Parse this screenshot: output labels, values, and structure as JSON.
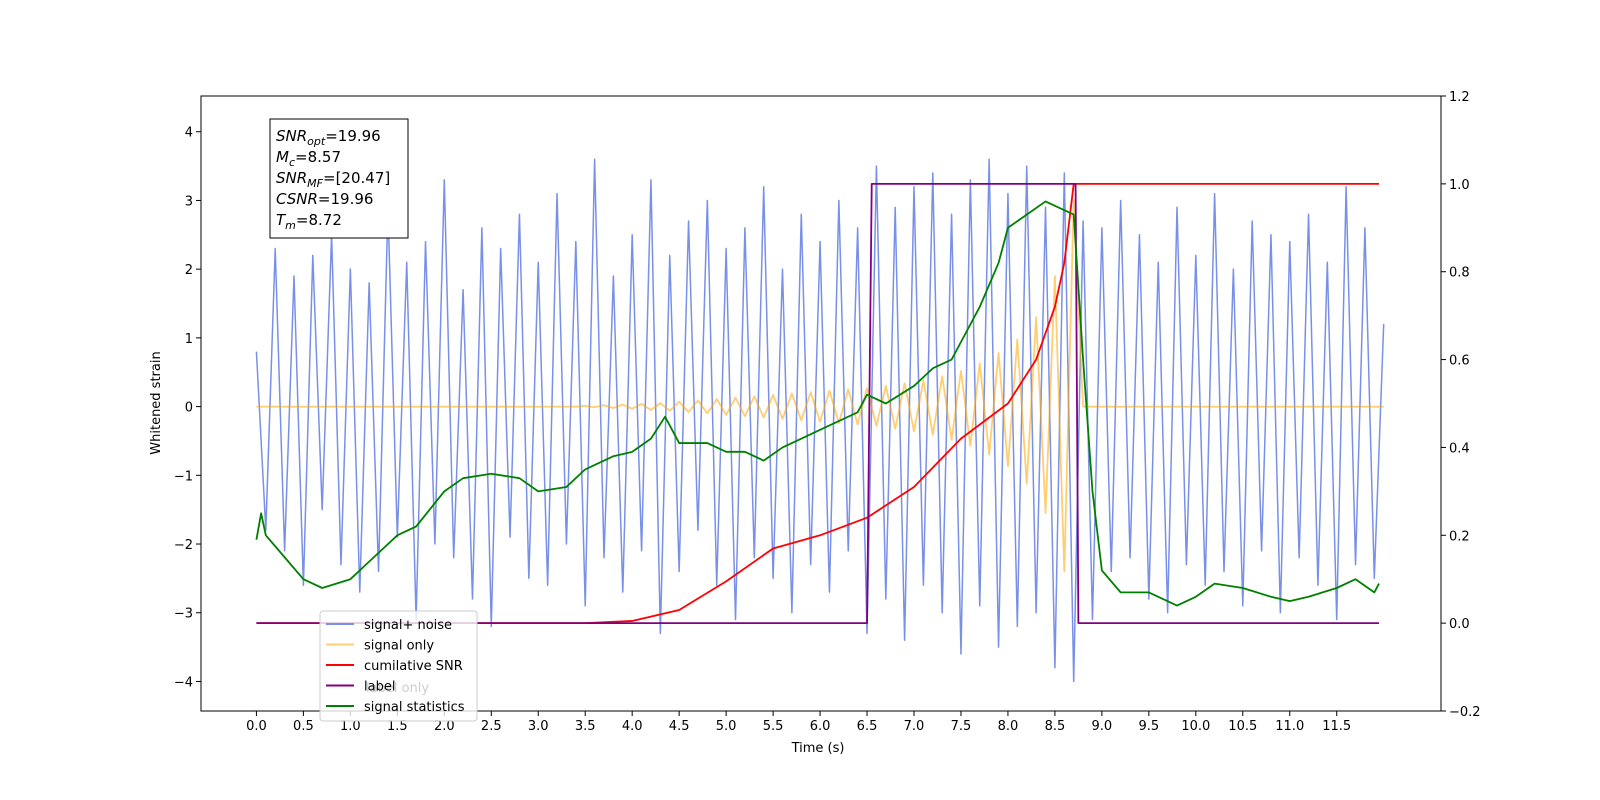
{
  "chart_data": {
    "type": "line",
    "xlabel": "Time (s)",
    "ylabel": "Whitened strain",
    "xlim": [
      -0.59,
      12.61
    ],
    "ylim": [
      -4.43,
      4.52
    ],
    "y2lim": [
      -0.2,
      1.2
    ],
    "xticks": [
      {
        "value": 0,
        "label": "0.0"
      },
      0.5,
      {
        "value": 1,
        "label": "1.0"
      },
      1.5,
      {
        "value": 2,
        "label": "2.0"
      },
      2.5,
      {
        "value": 3,
        "label": "3.0"
      },
      3.5,
      {
        "value": 4,
        "label": "4.0"
      },
      4.5,
      {
        "value": 5,
        "label": "5.0"
      },
      5.5,
      {
        "value": 6,
        "label": "6.0"
      },
      6.5,
      {
        "value": 7,
        "label": "7.0"
      },
      7.5,
      {
        "value": 8,
        "label": "8.0"
      },
      8.5,
      {
        "value": 9,
        "label": "9.0"
      },
      9.5,
      {
        "value": 10,
        "label": "10.0"
      },
      10.5,
      {
        "value": 11,
        "label": "11.0"
      },
      11.5
    ],
    "yticks": [
      {
        "value": -4,
        "label": "−4"
      },
      {
        "value": -3,
        "label": "−3"
      },
      {
        "value": -2,
        "label": "−2"
      },
      {
        "value": -1,
        "label": "−1"
      },
      0,
      1,
      2,
      3,
      4
    ],
    "y2ticks": [
      {
        "value": -0.2,
        "label": "−0.2"
      },
      {
        "value": 0,
        "label": "0.0"
      },
      0.2,
      0.4,
      0.6,
      0.8,
      {
        "value": 1,
        "label": "1.0"
      },
      1.2
    ],
    "annotation_box": [
      {
        "symbol": "SNR",
        "sub": "opt",
        "rest": "=19.96"
      },
      {
        "symbol": "M",
        "sub": "c",
        "rest": "=8.57"
      },
      {
        "symbol": "SNR",
        "sub": "MF",
        "rest": "=[20.47]"
      },
      {
        "symbol": "CSNR",
        "rest": "=19.96"
      },
      {
        "symbol": "T",
        "sub": "m",
        "rest": "=8.72"
      }
    ],
    "hidden_legend_text": "label only",
    "series": [
      {
        "name": "signal+ noise",
        "color": "#7890e8",
        "axis": "y",
        "x": [
          0,
          0.1,
          0.2,
          0.3,
          0.4,
          0.5,
          0.6,
          0.7,
          0.8,
          0.9,
          1,
          1.1,
          1.2,
          1.3,
          1.4,
          1.5,
          1.6,
          1.7,
          1.8,
          1.9,
          2,
          2.1,
          2.2,
          2.3,
          2.4,
          2.5,
          2.6,
          2.7,
          2.8,
          2.9,
          3,
          3.1,
          3.2,
          3.3,
          3.4,
          3.5,
          3.6,
          3.7,
          3.8,
          3.9,
          4,
          4.1,
          4.2,
          4.3,
          4.4,
          4.5,
          4.6,
          4.7,
          4.8,
          4.9,
          5,
          5.1,
          5.2,
          5.3,
          5.4,
          5.5,
          5.6,
          5.7,
          5.8,
          5.9,
          6,
          6.1,
          6.2,
          6.3,
          6.4,
          6.5,
          6.6,
          6.7,
          6.8,
          6.9,
          7,
          7.1,
          7.2,
          7.3,
          7.4,
          7.5,
          7.6,
          7.7,
          7.8,
          7.9,
          8,
          8.1,
          8.2,
          8.3,
          8.4,
          8.5,
          8.6,
          8.7,
          8.8,
          8.9,
          9,
          9.1,
          9.2,
          9.3,
          9.4,
          9.5,
          9.6,
          9.7,
          9.8,
          9.9,
          10,
          10.1,
          10.2,
          10.3,
          10.4,
          10.5,
          10.6,
          10.7,
          10.8,
          10.9,
          11,
          11.1,
          11.2,
          11.3,
          11.4,
          11.5,
          11.6,
          11.7,
          11.8,
          11.9,
          12
        ],
        "values": [
          0.8,
          -1.8,
          2.3,
          -2.1,
          1.9,
          -2.6,
          2.2,
          -1.5,
          2.5,
          -2.3,
          2.0,
          -2.7,
          1.8,
          -2.4,
          2.9,
          -1.9,
          2.1,
          -3.1,
          2.4,
          -2.0,
          3.3,
          -2.2,
          1.7,
          -2.8,
          2.6,
          -3.2,
          2.3,
          -1.9,
          2.8,
          -2.5,
          2.1,
          -2.6,
          3.1,
          -2.0,
          2.4,
          -2.9,
          3.6,
          -2.2,
          1.9,
          -2.7,
          2.5,
          -2.1,
          3.3,
          -3.3,
          2.2,
          -2.4,
          2.7,
          -1.8,
          3.0,
          -2.6,
          2.3,
          -3.1,
          2.6,
          -2.2,
          3.2,
          -2.5,
          2.0,
          -3.0,
          2.8,
          -2.3,
          2.4,
          -2.7,
          3.0,
          -2.1,
          2.6,
          -3.3,
          3.5,
          -2.8,
          2.9,
          -3.4,
          3.2,
          -2.6,
          3.4,
          -3.0,
          2.8,
          -3.6,
          3.3,
          -2.9,
          3.6,
          -3.5,
          3.1,
          -3.2,
          3.5,
          -3.0,
          2.9,
          -3.8,
          3.4,
          -4.0,
          2.7,
          -3.1,
          2.6,
          -2.4,
          3.0,
          -2.2,
          2.5,
          -2.8,
          2.1,
          -3.0,
          2.9,
          -2.3,
          2.2,
          -2.6,
          3.1,
          -2.4,
          2.0,
          -2.9,
          2.7,
          -2.1,
          2.5,
          -3.0,
          2.4,
          -2.2,
          2.8,
          -2.6,
          2.1,
          -3.1,
          3.2,
          -2.3,
          2.6,
          -2.5,
          1.2
        ]
      },
      {
        "name": "signal only",
        "color": "#ffa500",
        "axis": "y",
        "x": [
          0,
          0.1,
          0.2,
          0.3,
          0.4,
          0.5,
          0.6,
          0.7,
          0.8,
          0.9,
          1,
          1.1,
          1.2,
          1.3,
          1.4,
          1.5,
          1.6,
          1.7,
          1.8,
          1.9,
          2,
          2.1,
          2.2,
          2.3,
          2.4,
          2.5,
          2.6,
          2.7,
          2.8,
          2.9,
          3,
          3.1,
          3.2,
          3.3,
          3.4,
          3.5,
          3.6,
          3.7,
          3.8,
          3.9,
          4,
          4.1,
          4.2,
          4.3,
          4.4,
          4.5,
          4.6,
          4.7,
          4.8,
          4.9,
          5,
          5.1,
          5.2,
          5.3,
          5.4,
          5.5,
          5.6,
          5.7,
          5.8,
          5.9,
          6,
          6.1,
          6.2,
          6.3,
          6.4,
          6.5,
          6.6,
          6.7,
          6.8,
          6.9,
          7,
          7.1,
          7.2,
          7.3,
          7.4,
          7.5,
          7.6,
          7.7,
          7.8,
          7.9,
          8,
          8.1,
          8.2,
          8.3,
          8.4,
          8.5,
          8.6,
          8.7,
          8.8,
          8.9,
          9,
          9.1,
          9.2,
          9.3,
          9.4,
          9.5,
          9.6,
          9.7,
          9.8,
          9.9,
          10,
          10.1,
          10.2,
          10.3,
          10.4,
          10.5,
          10.6,
          10.7,
          10.8,
          10.9,
          11,
          11.1,
          11.2,
          11.3,
          11.4,
          11.5,
          11.6,
          11.7,
          11.8,
          11.9,
          12
        ],
        "values": [
          0,
          0,
          0,
          0,
          0,
          0,
          0,
          0,
          0,
          0,
          0,
          0,
          0,
          0,
          0,
          0,
          0,
          0,
          0,
          0,
          0,
          0,
          0,
          0,
          0,
          0,
          0,
          0,
          0,
          0,
          0,
          0,
          0,
          0,
          0,
          0.01,
          -0.01,
          0.02,
          -0.02,
          0.03,
          -0.03,
          0.04,
          -0.05,
          0.05,
          -0.06,
          0.07,
          -0.08,
          0.09,
          -0.1,
          0.11,
          -0.12,
          0.13,
          -0.14,
          0.15,
          -0.16,
          0.17,
          -0.18,
          0.19,
          -0.2,
          0.21,
          -0.22,
          0.23,
          -0.24,
          0.25,
          -0.26,
          0.27,
          -0.28,
          0.3,
          -0.32,
          0.34,
          -0.36,
          0.38,
          -0.41,
          0.44,
          -0.48,
          0.52,
          -0.57,
          0.63,
          -0.7,
          0.78,
          -0.87,
          0.98,
          -1.12,
          1.3,
          -1.55,
          1.9,
          -2.4,
          3.0,
          0,
          0,
          0,
          0,
          0,
          0,
          0,
          0,
          0,
          0,
          0,
          0,
          0,
          0,
          0,
          0,
          0,
          0,
          0,
          0,
          0,
          0,
          0,
          0,
          0,
          0,
          0,
          0,
          0,
          0,
          0,
          0,
          0
        ]
      },
      {
        "name": "cumilative SNR",
        "color": "#ff0000",
        "axis": "y2",
        "x": [
          0,
          3.5,
          4,
          4.5,
          5,
          5.5,
          6,
          6.5,
          7,
          7.5,
          8,
          8.3,
          8.5,
          8.6,
          8.7,
          11.95
        ],
        "values": [
          0,
          0,
          0.005,
          0.03,
          0.095,
          0.17,
          0.2,
          0.24,
          0.31,
          0.42,
          0.5,
          0.6,
          0.72,
          0.82,
          1,
          1
        ]
      },
      {
        "name": "label",
        "color": "#800080",
        "axis": "y2",
        "x": [
          0,
          6.5,
          6.55,
          8.72,
          8.75,
          11.95
        ],
        "values": [
          0,
          0,
          1,
          1,
          0,
          0
        ]
      },
      {
        "name": "signal statistics",
        "color": "#008000",
        "axis": "y2",
        "x": [
          0,
          0.05,
          0.1,
          0.3,
          0.5,
          0.7,
          1,
          1.2,
          1.5,
          1.7,
          2,
          2.2,
          2.5,
          2.8,
          3,
          3.3,
          3.5,
          3.8,
          4,
          4.2,
          4.35,
          4.5,
          4.8,
          5,
          5.2,
          5.4,
          5.6,
          5.8,
          6,
          6.2,
          6.4,
          6.5,
          6.7,
          7,
          7.2,
          7.4,
          7.5,
          7.7,
          7.9,
          8,
          8.2,
          8.4,
          8.5,
          8.7,
          8.8,
          8.9,
          9,
          9.2,
          9.5,
          9.8,
          10,
          10.2,
          10.5,
          10.8,
          11,
          11.2,
          11.5,
          11.7,
          11.9,
          11.95
        ],
        "values": [
          0.19,
          0.25,
          0.2,
          0.15,
          0.1,
          0.08,
          0.1,
          0.14,
          0.2,
          0.22,
          0.3,
          0.33,
          0.34,
          0.33,
          0.3,
          0.31,
          0.35,
          0.38,
          0.39,
          0.42,
          0.47,
          0.41,
          0.41,
          0.39,
          0.39,
          0.37,
          0.4,
          0.42,
          0.44,
          0.46,
          0.48,
          0.52,
          0.5,
          0.54,
          0.58,
          0.6,
          0.64,
          0.72,
          0.82,
          0.9,
          0.93,
          0.96,
          0.95,
          0.93,
          0.6,
          0.3,
          0.12,
          0.07,
          0.07,
          0.04,
          0.06,
          0.09,
          0.08,
          0.06,
          0.05,
          0.06,
          0.08,
          0.1,
          0.07,
          0.09
        ]
      }
    ]
  }
}
